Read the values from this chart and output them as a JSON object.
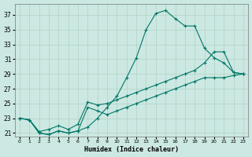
{
  "xlabel": "Humidex (Indice chaleur)",
  "bg_color": "#cce8e2",
  "grid_color": "#aaccbb",
  "line_color": "#007766",
  "xlim": [
    -0.5,
    23.5
  ],
  "ylim": [
    20.5,
    38.5
  ],
  "yticks": [
    21,
    23,
    25,
    27,
    29,
    31,
    33,
    35,
    37
  ],
  "xticks": [
    0,
    1,
    2,
    3,
    4,
    5,
    6,
    7,
    8,
    9,
    10,
    11,
    12,
    13,
    14,
    15,
    16,
    17,
    18,
    19,
    20,
    21,
    22,
    23
  ],
  "line1_x": [
    0,
    1,
    2,
    3,
    4,
    5,
    6,
    7,
    8,
    9,
    10,
    11,
    12,
    13,
    14,
    15,
    16,
    17,
    18,
    19,
    20,
    21,
    22,
    23
  ],
  "line1_y": [
    23.0,
    22.8,
    21.0,
    20.8,
    21.3,
    21.0,
    21.3,
    21.8,
    23.0,
    24.5,
    26.0,
    28.5,
    31.2,
    35.0,
    37.2,
    37.6,
    36.5,
    35.5,
    35.5,
    32.5,
    31.2,
    30.5,
    29.2,
    29.0
  ],
  "line2_x": [
    0,
    1,
    2,
    3,
    4,
    5,
    6,
    7,
    8,
    9,
    10,
    11,
    12,
    13,
    14,
    15,
    16,
    17,
    18,
    19,
    20,
    21,
    22,
    23
  ],
  "line2_y": [
    23.0,
    22.8,
    21.2,
    21.5,
    22.0,
    21.5,
    22.2,
    25.2,
    24.8,
    25.0,
    25.5,
    26.0,
    26.5,
    27.0,
    27.5,
    28.0,
    28.5,
    29.0,
    29.5,
    30.5,
    32.0,
    32.0,
    29.2,
    29.0
  ],
  "line3_x": [
    0,
    1,
    2,
    3,
    4,
    5,
    6,
    7,
    8,
    9,
    10,
    11,
    12,
    13,
    14,
    15,
    16,
    17,
    18,
    19,
    20,
    21,
    22,
    23
  ],
  "line3_y": [
    23.0,
    22.8,
    21.0,
    20.8,
    21.3,
    21.0,
    21.3,
    24.5,
    24.0,
    23.5,
    24.0,
    24.5,
    25.0,
    25.5,
    26.0,
    26.5,
    27.0,
    27.5,
    28.0,
    28.5,
    28.5,
    28.5,
    28.8,
    29.0
  ]
}
